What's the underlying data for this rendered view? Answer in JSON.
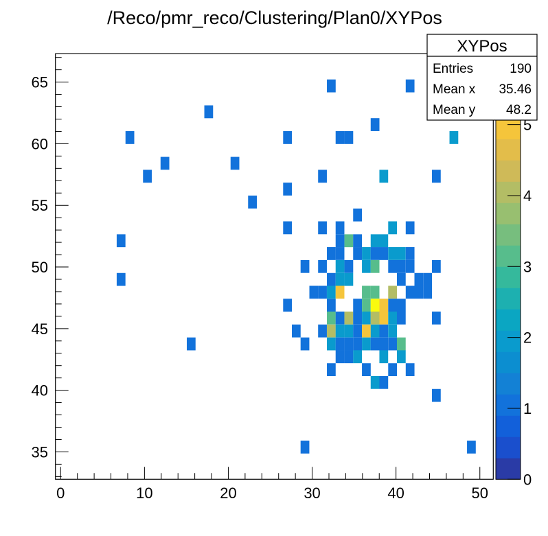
{
  "chart_data": {
    "type": "heatmap",
    "title": "/Reco/pmr_reco/Clustering/Plan0/XYPos",
    "xlabel": "",
    "ylabel": "",
    "xlim": [
      -0.62,
      51.6
    ],
    "ylim": [
      32.78,
      67.3
    ],
    "zlim": [
      0,
      6
    ],
    "x_bins": {
      "n": 50,
      "min": -0.62,
      "max": 51.6
    },
    "y_bins": {
      "n": 33,
      "min": 32.78,
      "max": 67.3
    },
    "x_ticks": [
      "0",
      "10",
      "20",
      "30",
      "40",
      "50"
    ],
    "y_ticks": [
      "35",
      "40",
      "45",
      "50",
      "55",
      "60",
      "65"
    ],
    "z_ticks": [
      "0",
      "1",
      "2",
      "3",
      "4",
      "5"
    ],
    "grid": false,
    "palette": [
      "#2a3ba6",
      "#1a4fcd",
      "#1260da",
      "#1272db",
      "#1381d5",
      "#0c8ed0",
      "#0a9bcd",
      "#0ba6c2",
      "#1db0b0",
      "#35b99c",
      "#57bd8c",
      "#77be7e",
      "#98bf70",
      "#b3bd65",
      "#cfba58",
      "#e3bd4a",
      "#f5c53b",
      "#f8d22f",
      "#f8e524",
      "#f9fa0f"
    ],
    "cells": [
      [
        32.28,
        64.69,
        1
      ],
      [
        41.68,
        64.69,
        1
      ],
      [
        17.66,
        62.59,
        1
      ],
      [
        37.5,
        61.55,
        1
      ],
      [
        8.26,
        60.5,
        1
      ],
      [
        27.06,
        60.5,
        1
      ],
      [
        33.32,
        60.5,
        1
      ],
      [
        34.37,
        60.5,
        1
      ],
      [
        46.9,
        60.5,
        2
      ],
      [
        12.44,
        58.41,
        1
      ],
      [
        20.79,
        58.41,
        1
      ],
      [
        10.35,
        57.36,
        1
      ],
      [
        31.23,
        57.36,
        1
      ],
      [
        38.54,
        57.36,
        2
      ],
      [
        44.81,
        57.36,
        1
      ],
      [
        27.06,
        56.32,
        1
      ],
      [
        22.88,
        55.27,
        1
      ],
      [
        35.41,
        54.22,
        1
      ],
      [
        27.06,
        53.18,
        1
      ],
      [
        31.23,
        53.18,
        1
      ],
      [
        33.32,
        53.18,
        1
      ],
      [
        39.59,
        53.18,
        2
      ],
      [
        41.68,
        53.18,
        1
      ],
      [
        7.21,
        52.13,
        1
      ],
      [
        33.32,
        52.13,
        1
      ],
      [
        34.37,
        52.13,
        3
      ],
      [
        35.41,
        52.13,
        1
      ],
      [
        37.5,
        52.13,
        2
      ],
      [
        38.54,
        52.13,
        2
      ],
      [
        32.28,
        51.09,
        1
      ],
      [
        33.32,
        51.09,
        1
      ],
      [
        35.41,
        51.09,
        1
      ],
      [
        36.46,
        51.09,
        2
      ],
      [
        37.5,
        51.09,
        1
      ],
      [
        38.54,
        51.09,
        1
      ],
      [
        39.59,
        51.09,
        2
      ],
      [
        40.63,
        51.09,
        2
      ],
      [
        41.68,
        51.09,
        1
      ],
      [
        29.14,
        50.04,
        1
      ],
      [
        31.23,
        50.04,
        1
      ],
      [
        33.32,
        50.04,
        2
      ],
      [
        34.37,
        50.04,
        1
      ],
      [
        36.46,
        50.04,
        2
      ],
      [
        37.5,
        50.04,
        3
      ],
      [
        39.59,
        50.04,
        1
      ],
      [
        40.63,
        50.04,
        1
      ],
      [
        41.68,
        50.04,
        1
      ],
      [
        44.81,
        50.04,
        1
      ],
      [
        7.21,
        48.99,
        1
      ],
      [
        32.28,
        48.99,
        1
      ],
      [
        33.32,
        48.99,
        2
      ],
      [
        34.37,
        48.99,
        2
      ],
      [
        40.63,
        48.99,
        1
      ],
      [
        42.72,
        48.99,
        1
      ],
      [
        43.77,
        48.99,
        1
      ],
      [
        30.19,
        47.95,
        1
      ],
      [
        31.23,
        47.95,
        1
      ],
      [
        32.28,
        47.95,
        2
      ],
      [
        33.32,
        47.95,
        5
      ],
      [
        36.46,
        47.95,
        3
      ],
      [
        37.5,
        47.95,
        3
      ],
      [
        39.59,
        47.95,
        4
      ],
      [
        41.68,
        47.95,
        1
      ],
      [
        42.72,
        47.95,
        1
      ],
      [
        43.77,
        47.95,
        1
      ],
      [
        27.06,
        46.9,
        1
      ],
      [
        32.28,
        46.9,
        1
      ],
      [
        35.41,
        46.9,
        1
      ],
      [
        36.46,
        46.9,
        3
      ],
      [
        37.5,
        46.9,
        6
      ],
      [
        38.54,
        46.9,
        5
      ],
      [
        39.59,
        46.9,
        1
      ],
      [
        40.63,
        46.9,
        1
      ],
      [
        32.28,
        45.86,
        3
      ],
      [
        33.32,
        45.86,
        1
      ],
      [
        34.37,
        45.86,
        4
      ],
      [
        35.41,
        45.86,
        1
      ],
      [
        36.46,
        45.86,
        2
      ],
      [
        37.5,
        45.86,
        4
      ],
      [
        38.54,
        45.86,
        5
      ],
      [
        39.59,
        45.86,
        2
      ],
      [
        40.63,
        45.86,
        1
      ],
      [
        44.81,
        45.86,
        1
      ],
      [
        28.1,
        44.81,
        1
      ],
      [
        31.23,
        44.81,
        1
      ],
      [
        32.28,
        44.81,
        4
      ],
      [
        33.32,
        44.81,
        2
      ],
      [
        34.37,
        44.81,
        2
      ],
      [
        35.41,
        44.81,
        1
      ],
      [
        36.46,
        44.81,
        5
      ],
      [
        37.5,
        44.81,
        2
      ],
      [
        38.54,
        44.81,
        1
      ],
      [
        39.59,
        44.81,
        2
      ],
      [
        15.57,
        43.76,
        1
      ],
      [
        29.14,
        43.76,
        1
      ],
      [
        32.28,
        43.76,
        2
      ],
      [
        33.32,
        43.76,
        1
      ],
      [
        34.37,
        43.76,
        1
      ],
      [
        35.41,
        43.76,
        1
      ],
      [
        36.46,
        43.76,
        2
      ],
      [
        37.5,
        43.76,
        1
      ],
      [
        38.54,
        43.76,
        1
      ],
      [
        39.59,
        43.76,
        1
      ],
      [
        40.63,
        43.76,
        3
      ],
      [
        33.32,
        42.72,
        1
      ],
      [
        34.37,
        42.72,
        1
      ],
      [
        35.41,
        42.72,
        2
      ],
      [
        38.54,
        42.72,
        2
      ],
      [
        40.63,
        42.72,
        2
      ],
      [
        32.28,
        41.67,
        1
      ],
      [
        36.46,
        41.67,
        1
      ],
      [
        39.59,
        41.67,
        1
      ],
      [
        41.68,
        41.67,
        1
      ],
      [
        37.5,
        40.63,
        2
      ],
      [
        38.54,
        40.63,
        1
      ],
      [
        44.81,
        39.58,
        1
      ],
      [
        29.14,
        35.39,
        1
      ],
      [
        48.99,
        35.39,
        1
      ]
    ]
  },
  "stats": {
    "name": "XYPos",
    "entries_label": "Entries",
    "entries": "190",
    "mean_x_label": "Mean x",
    "mean_x": "35.46",
    "mean_y_label": "Mean y",
    "mean_y": "48.2"
  }
}
